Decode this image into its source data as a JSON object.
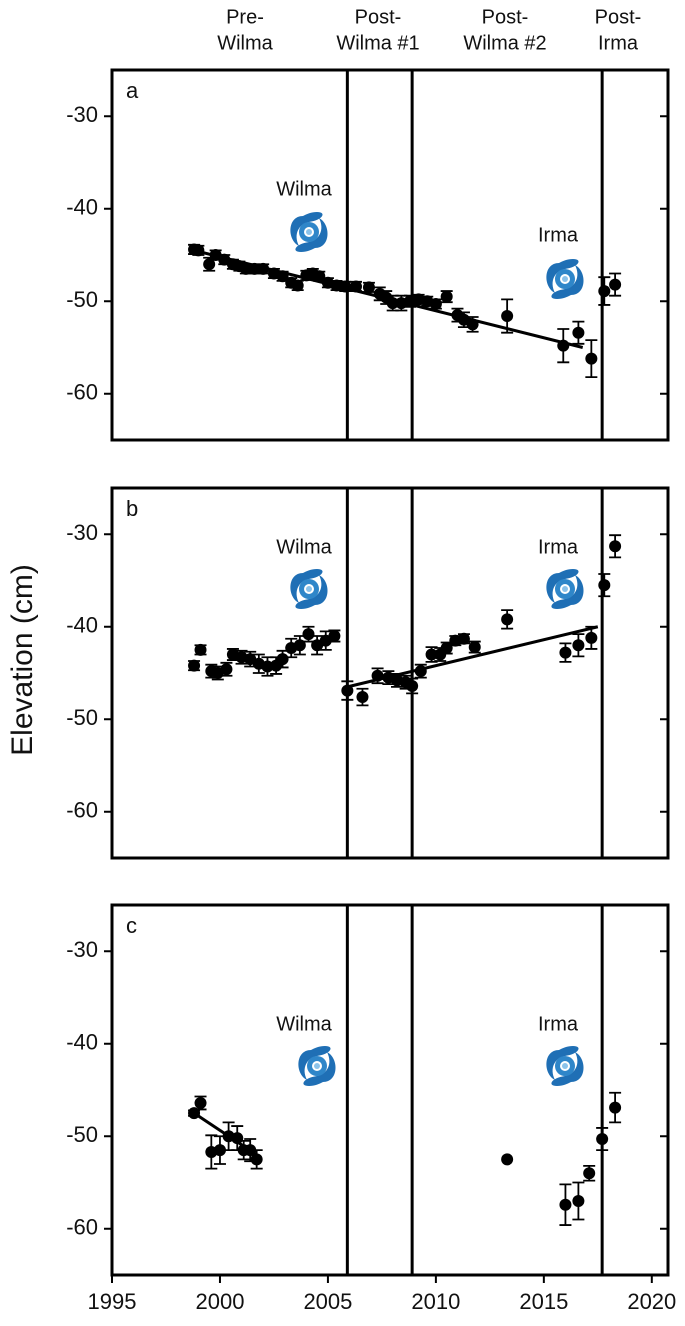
{
  "chart_data": [
    {
      "type": "scatter",
      "panel": "a",
      "period_labels": [
        [
          "Pre-",
          "Wilma"
        ],
        [
          "Post-",
          "Wilma #1"
        ],
        [
          "Post-",
          "Wilma #2"
        ],
        [
          "Post-",
          "Irma"
        ]
      ],
      "annotations": [
        "Wilma",
        "Irma"
      ],
      "xlim": [
        1995,
        2020.75
      ],
      "ylim": [
        -65,
        -25
      ],
      "yticks": [
        -30,
        -40,
        -50,
        -60
      ],
      "vlines": [
        2005.9,
        2008.9,
        2017.7
      ],
      "x": [
        1998.8,
        1999.0,
        1999.5,
        1999.8,
        2000.2,
        2000.6,
        2000.9,
        2001.2,
        2001.6,
        2002.0,
        2002.5,
        2002.9,
        2003.3,
        2003.6,
        2004.0,
        2004.3,
        2004.6,
        2005.0,
        2005.4,
        2005.8,
        2006.3,
        2006.9,
        2007.4,
        2007.7,
        2008.0,
        2008.4,
        2008.8,
        2009.2,
        2009.6,
        2010.0,
        2010.5,
        2011.0,
        2011.3,
        2011.7,
        2013.3,
        2015.9,
        2016.6,
        2017.2,
        2017.8,
        2018.3
      ],
      "values": [
        -44.4,
        -44.5,
        -46,
        -45,
        -45.5,
        -46,
        -46.2,
        -46.5,
        -46.5,
        -46.5,
        -47,
        -47.3,
        -48,
        -48.3,
        -47.2,
        -47,
        -47.3,
        -48,
        -48.3,
        -48.4,
        -48.4,
        -48.5,
        -49.2,
        -49.6,
        -50.2,
        -50.2,
        -50,
        -49.8,
        -50,
        -50.3,
        -49.5,
        -51.5,
        -52,
        -52.5,
        -51.6,
        -54.8,
        -53.4,
        -56.2,
        -48.9,
        -48.2
      ],
      "errors": [
        0.5,
        0.5,
        0.7,
        0.5,
        0.5,
        0.5,
        0.5,
        0.5,
        0.5,
        0.5,
        0.5,
        0.5,
        0.5,
        0.5,
        0.5,
        0.5,
        0.5,
        0.5,
        0.5,
        0.5,
        0.5,
        0.5,
        0.7,
        0.7,
        0.8,
        0.8,
        0.6,
        0.5,
        0.5,
        0.5,
        0.6,
        0.7,
        0.8,
        0.8,
        1.8,
        1.8,
        1.2,
        2,
        1.5,
        1.2
      ],
      "trend": [
        {
          "x": [
            1998.8,
            2016.8
          ],
          "values": [
            -44.5,
            -55
          ]
        }
      ]
    },
    {
      "type": "scatter",
      "panel": "b",
      "ylabel": "Elevation (cm)",
      "annotations": [
        "Wilma",
        "Irma"
      ],
      "xlim": [
        1995,
        2020.75
      ],
      "ylim": [
        -65,
        -25
      ],
      "yticks": [
        -30,
        -40,
        -50,
        -60
      ],
      "vlines": [
        2005.9,
        2008.9,
        2017.7
      ],
      "x": [
        1998.8,
        1999.1,
        1999.6,
        1999.9,
        2000.3,
        2000.6,
        2001.0,
        2001.4,
        2001.8,
        2002.2,
        2002.6,
        2002.9,
        2003.3,
        2003.7,
        2004.1,
        2004.5,
        2004.9,
        2005.3,
        2005.9,
        2006.6,
        2007.3,
        2007.8,
        2008.2,
        2008.6,
        2008.9,
        2009.3,
        2009.8,
        2010.2,
        2010.5,
        2010.9,
        2011.3,
        2011.8,
        2013.3,
        2016.0,
        2016.6,
        2017.2,
        2017.8,
        2018.3
      ],
      "values": [
        -44.2,
        -42.5,
        -44.8,
        -45,
        -44.6,
        -43,
        -43.3,
        -43.5,
        -44,
        -44.3,
        -44.2,
        -43.5,
        -42.3,
        -42,
        -40.8,
        -42,
        -41.5,
        -41,
        -46.9,
        -47.6,
        -45.3,
        -45.5,
        -45.8,
        -46,
        -46.4,
        -44.8,
        -43,
        -43,
        -42.3,
        -41.5,
        -41.3,
        -42.2,
        -39.2,
        -42.8,
        -42,
        -41.2,
        -35.5,
        -31.3
      ],
      "errors": [
        0.5,
        0.5,
        0.7,
        0.7,
        0.7,
        0.6,
        0.7,
        0.8,
        1,
        1,
        0.9,
        0.9,
        1,
        1,
        0.8,
        1,
        1,
        0.6,
        1,
        0.9,
        0.8,
        0.7,
        0.7,
        0.7,
        0.8,
        0.7,
        0.8,
        0.7,
        0.6,
        0.5,
        0.5,
        0.6,
        1,
        1,
        1.2,
        1.2,
        1.2,
        1.2
      ],
      "trend": [
        {
          "x": [
            2005.9,
            2017.5
          ],
          "values": [
            -46.5,
            -40
          ]
        }
      ]
    },
    {
      "type": "scatter",
      "panel": "c",
      "annotations": [
        "Wilma",
        "Irma"
      ],
      "xlim": [
        1995,
        2020.75
      ],
      "ylim": [
        -65,
        -25
      ],
      "yticks": [
        -30,
        -40,
        -50,
        -60
      ],
      "xticks": [
        1995,
        2000,
        2005,
        2010,
        2015,
        2020
      ],
      "vlines": [
        2005.9,
        2008.9,
        2017.7
      ],
      "x": [
        1998.8,
        1999.1,
        1999.6,
        2000.0,
        2000.4,
        2000.8,
        2001.1,
        2001.4,
        2001.7,
        2013.3,
        2016.0,
        2016.6,
        2017.1,
        2017.7,
        2018.3
      ],
      "values": [
        -47.5,
        -46.4,
        -51.7,
        -51.5,
        -50,
        -50.2,
        -51.5,
        -51.5,
        -52.5,
        -52.5,
        -57.4,
        -57,
        -54,
        -50.3,
        -46.9
      ],
      "errors": [
        0.3,
        0.7,
        1.8,
        1.5,
        1.5,
        1.3,
        1,
        1.2,
        1,
        null,
        2.2,
        2,
        0.8,
        1.2,
        1.6
      ],
      "trend": [
        {
          "x": [
            1998.8,
            2001.7
          ],
          "values": [
            -47.5,
            -52
          ]
        }
      ]
    }
  ]
}
